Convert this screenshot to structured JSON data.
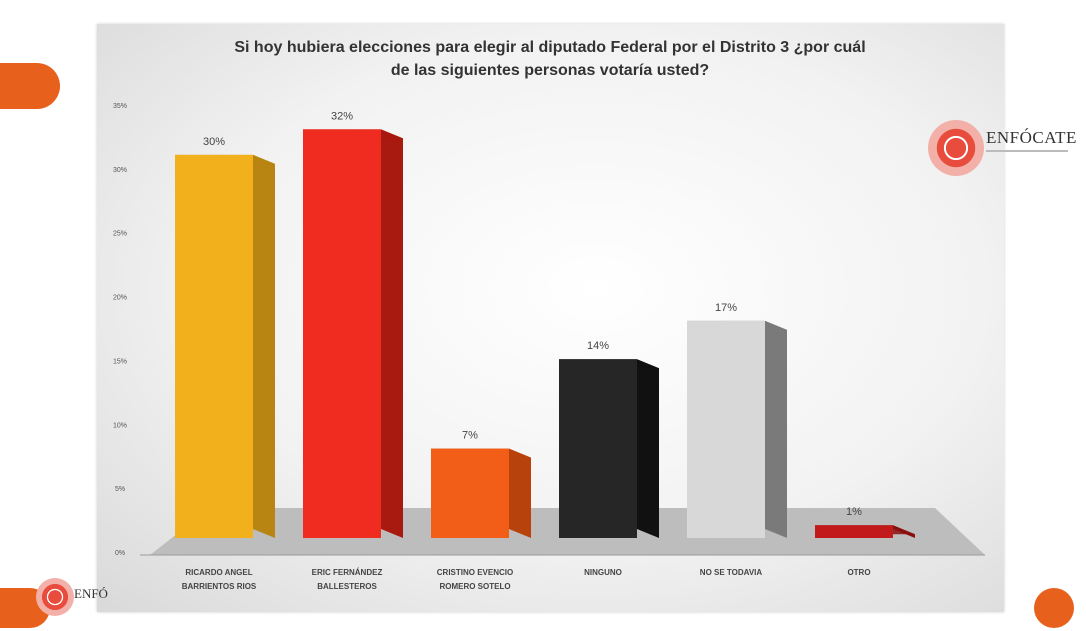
{
  "branding": {
    "logo_text": "ENFÓCATE",
    "logo_text_partial": "ENFÓ",
    "accent_color": "#e8611c"
  },
  "chart_data": {
    "type": "bar",
    "title_lines": [
      "Si hoy hubiera elecciones para  elegir al diputado Federal por el Distrito 3 ¿por cuál",
      "de las siguientes personas votaría usted?"
    ],
    "categories": [
      [
        "RICARDO ANGEL",
        "BARRIENTOS RIOS"
      ],
      [
        "ERIC FERNÁNDEZ",
        "BALLESTEROS"
      ],
      [
        "CRISTINO EVENCIO",
        "ROMERO SOTELO"
      ],
      [
        "NINGUNO"
      ],
      [
        "NO SE TODAVIA"
      ],
      [
        "OTRO"
      ]
    ],
    "values": [
      30,
      32,
      7,
      14,
      17,
      1
    ],
    "data_labels": [
      "30%",
      "32%",
      "7%",
      "14%",
      "17%",
      "1%"
    ],
    "colors": [
      "#f2b11c",
      "#f02b1f",
      "#f25d17",
      "#262626",
      "#d8d8d8",
      "#c21a1a"
    ],
    "side_colors": [
      "#b88512",
      "#a8190f",
      "#b8420c",
      "#111111",
      "#7a7a7a",
      "#8a0f0f"
    ],
    "y_ticks": [
      "0%",
      "5%",
      "10%",
      "15%",
      "20%",
      "25%",
      "30%",
      "35%"
    ],
    "ylim": [
      0,
      35
    ]
  }
}
